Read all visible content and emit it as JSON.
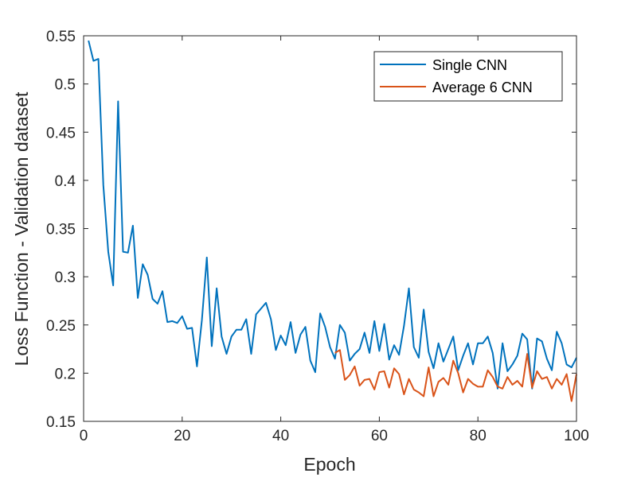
{
  "chart_data": {
    "type": "line",
    "title": "",
    "xlabel": "Epoch",
    "ylabel": "Loss Function - Validation dataset",
    "xlim": [
      0,
      100
    ],
    "ylim": [
      0.15,
      0.55
    ],
    "xticks": [
      0,
      20,
      40,
      60,
      80,
      100
    ],
    "xtick_labels": [
      "0",
      "20",
      "40",
      "60",
      "80",
      "100"
    ],
    "yticks": [
      0.15,
      0.2,
      0.25,
      0.3,
      0.35,
      0.4,
      0.45,
      0.5,
      0.55
    ],
    "ytick_labels": [
      "0.15",
      "0.2",
      "0.25",
      "0.3",
      "0.35",
      "0.4",
      "0.45",
      "0.5",
      "0.55"
    ],
    "grid": false,
    "legend_position": "top-right",
    "series": [
      {
        "name": "Single CNN",
        "color": "#0072BD",
        "x": [
          1,
          2,
          3,
          4,
          5,
          6,
          7,
          8,
          9,
          10,
          11,
          12,
          13,
          14,
          15,
          16,
          17,
          18,
          19,
          20,
          21,
          22,
          23,
          24,
          25,
          26,
          27,
          28,
          29,
          30,
          31,
          32,
          33,
          34,
          35,
          36,
          37,
          38,
          39,
          40,
          41,
          42,
          43,
          44,
          45,
          46,
          47,
          48,
          49,
          50,
          51,
          52,
          53,
          54,
          55,
          56,
          57,
          58,
          59,
          60,
          61,
          62,
          63,
          64,
          65,
          66,
          67,
          68,
          69,
          70,
          71,
          72,
          73,
          74,
          75,
          76,
          77,
          78,
          79,
          80,
          81,
          82,
          83,
          84,
          85,
          86,
          87,
          88,
          89,
          90,
          91,
          92,
          93,
          94,
          95,
          96,
          97,
          98,
          99,
          100
        ],
        "y": [
          0.545,
          0.524,
          0.526,
          0.395,
          0.326,
          0.291,
          0.482,
          0.326,
          0.325,
          0.353,
          0.278,
          0.313,
          0.302,
          0.277,
          0.272,
          0.285,
          0.253,
          0.254,
          0.252,
          0.259,
          0.246,
          0.247,
          0.207,
          0.255,
          0.32,
          0.228,
          0.288,
          0.238,
          0.22,
          0.238,
          0.245,
          0.245,
          0.256,
          0.22,
          0.261,
          0.267,
          0.273,
          0.256,
          0.224,
          0.239,
          0.229,
          0.253,
          0.221,
          0.24,
          0.248,
          0.213,
          0.201,
          0.262,
          0.248,
          0.227,
          0.215,
          0.25,
          0.242,
          0.213,
          0.22,
          0.225,
          0.242,
          0.221,
          0.254,
          0.223,
          0.251,
          0.214,
          0.229,
          0.219,
          0.249,
          0.288,
          0.227,
          0.216,
          0.266,
          0.222,
          0.205,
          0.231,
          0.212,
          0.225,
          0.238,
          0.203,
          0.218,
          0.231,
          0.209,
          0.231,
          0.231,
          0.238,
          0.221,
          0.184,
          0.231,
          0.202,
          0.209,
          0.218,
          0.241,
          0.235,
          0.184,
          0.236,
          0.233,
          0.215,
          0.203,
          0.243,
          0.231,
          0.209,
          0.206,
          0.216
        ]
      },
      {
        "name": "Average 6 CNN",
        "color": "#D95319",
        "x": [
          51,
          52,
          53,
          54,
          55,
          56,
          57,
          58,
          59,
          60,
          61,
          62,
          63,
          64,
          65,
          66,
          67,
          68,
          69,
          70,
          71,
          72,
          73,
          74,
          75,
          76,
          77,
          78,
          79,
          80,
          81,
          82,
          83,
          84,
          85,
          86,
          87,
          88,
          89,
          90,
          91,
          92,
          93,
          94,
          95,
          96,
          97,
          98,
          99,
          100
        ],
        "y": [
          0.221,
          0.224,
          0.193,
          0.198,
          0.207,
          0.187,
          0.193,
          0.194,
          0.183,
          0.201,
          0.202,
          0.185,
          0.205,
          0.199,
          0.178,
          0.194,
          0.183,
          0.18,
          0.176,
          0.206,
          0.176,
          0.191,
          0.195,
          0.188,
          0.213,
          0.2,
          0.18,
          0.194,
          0.189,
          0.186,
          0.186,
          0.203,
          0.196,
          0.186,
          0.184,
          0.196,
          0.188,
          0.192,
          0.186,
          0.22,
          0.185,
          0.202,
          0.194,
          0.196,
          0.184,
          0.194,
          0.188,
          0.199,
          0.171,
          0.199
        ]
      }
    ]
  }
}
